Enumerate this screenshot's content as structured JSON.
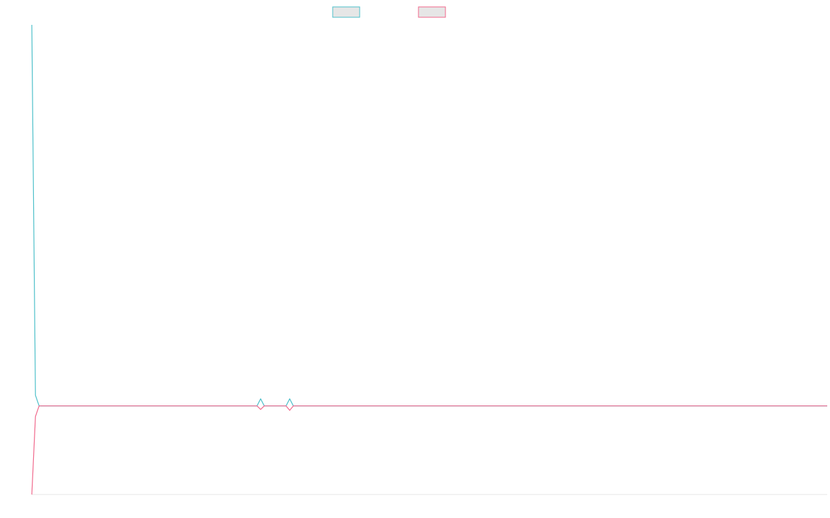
{
  "chart_data": {
    "type": "line",
    "title": "",
    "xlabel": "",
    "ylabel": "",
    "grid": false,
    "legend_position": "top-center",
    "x_count": 220,
    "ylim": [
      -100,
      430
    ],
    "series": [
      {
        "color": "#4bbfc9",
        "legend_fill": "#e6e6e6",
        "points": [
          [
            0,
            430
          ],
          [
            1,
            12
          ],
          [
            2,
            0
          ],
          [
            62,
            0
          ],
          [
            63,
            8
          ],
          [
            64,
            0
          ],
          [
            70,
            0
          ],
          [
            71,
            8
          ],
          [
            72,
            0
          ],
          [
            219,
            0
          ]
        ]
      },
      {
        "color": "#f0668a",
        "legend_fill": "#e6e6e6",
        "points": [
          [
            0,
            -100
          ],
          [
            1,
            -12
          ],
          [
            2,
            0
          ],
          [
            62,
            0
          ],
          [
            63,
            -4
          ],
          [
            64,
            0
          ],
          [
            70,
            0
          ],
          [
            71,
            -5
          ],
          [
            72,
            0
          ],
          [
            219,
            0
          ]
        ]
      }
    ]
  }
}
